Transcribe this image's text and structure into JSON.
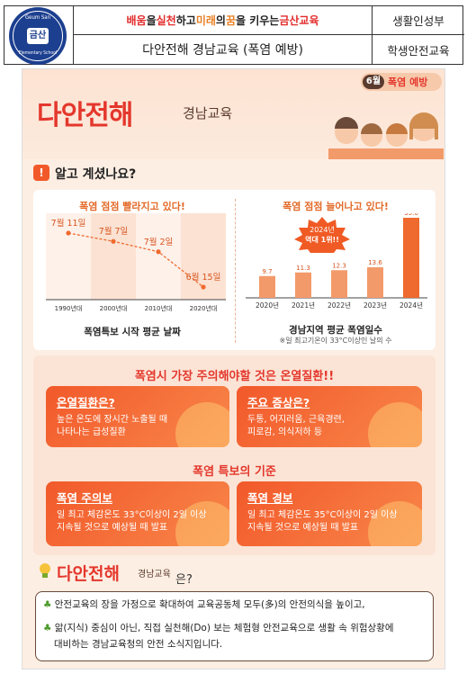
{
  "header": {
    "logo_top": "Geum San",
    "logo_mid": "금산",
    "logo_bottom": "Elementary School",
    "slogan": {
      "part1": "배움",
      "part2": "을 ",
      "part3": "실천",
      "part4": "하고 ",
      "part5": "미래",
      "part6": "의 ",
      "part7": "꿈",
      "part8": "을 키우는 ",
      "part9": "금산교육"
    },
    "category": "생활인성부",
    "title": "다안전해 경남교육 (폭염 예방)",
    "sub_category": "학생안전교육"
  },
  "poster": {
    "month": "6월",
    "topic": "폭염 예방",
    "brand": "다안전해",
    "brand_sub": "경남교육",
    "section1": "알고 계셨나요?",
    "chart1": {
      "title": "폭염 점점 빨라지고 있다!",
      "caption": "폭염특보 시작 평균 날짜"
    },
    "chart2": {
      "title": "폭염 점점 늘어나고 있다!",
      "badge_line1": "2024년",
      "badge_line2": "역대 1위!!",
      "caption": "경남지역 평균 폭염일수",
      "footnote": "※일 최고기온이 33°C이상인 날의 수"
    },
    "section2": "폭염시 가장 주의해야할 것은 온열질환!!",
    "box1": {
      "h": "온열질환은?",
      "b1": "높은 온도에 장시간 노출될 때",
      "b2": "나타나는 급성질환"
    },
    "box2": {
      "h": "주요 증상은?",
      "b1": "두통, 어지러움, 근육경련,",
      "b2": "피로감, 의식저하 등"
    },
    "section3": "폭염 특보의 기준",
    "box3": {
      "h": "폭염 주의보",
      "b1": "일 최고 체감온도 33°C이상이 2일 이상",
      "b2": "지속될 것으로 예상될 때 발표"
    },
    "box4": {
      "h": "폭염 경보",
      "b1": "일 최고 체감온도 35°C이상이 2일 이상",
      "b2": "지속될 것으로 예상될 때 발표"
    },
    "footer_brand": "다안전해",
    "footer_brand_sub": "경남교육",
    "footer_q": "은?",
    "note1": "안전교육의 장을 가정으로 확대하여 교육공동체 모두(多)의 안전의식을 높이고,",
    "note2": "앎(지식) 중심이 아닌, 직접 실천해(Do) 보는 체험형 안전교육으로 생활 속 위험상황에",
    "note3": "대비하는 경남교육청의 안전 소식지입니다."
  },
  "chart_data": [
    {
      "type": "line",
      "title": "폭염 점점 빨라지고 있다!",
      "xlabel": "폭염특보 시작 평균 날짜",
      "categories": [
        "1990년대",
        "2000년대",
        "2010년대",
        "2020년대"
      ],
      "labels": [
        "7월 11일",
        "7월 7일",
        "7월 2일",
        "6월 15일"
      ],
      "values": [
        11,
        7,
        2,
        -15
      ]
    },
    {
      "type": "bar",
      "title": "폭염 점점 늘어나고 있다!",
      "xlabel": "경남지역 평균 폭염일수",
      "categories": [
        "2020년",
        "2021년",
        "2022년",
        "2023년",
        "2024년"
      ],
      "values": [
        9.7,
        11.3,
        12.3,
        13.6,
        35.6
      ],
      "colors": [
        "#f39a6b",
        "#f39a6b",
        "#f39a6b",
        "#f39a6b",
        "#ef6a2e"
      ]
    }
  ],
  "colors": {
    "accent": "#e4372c",
    "orange": "#f2592a",
    "navy": "#1c3f8f"
  }
}
